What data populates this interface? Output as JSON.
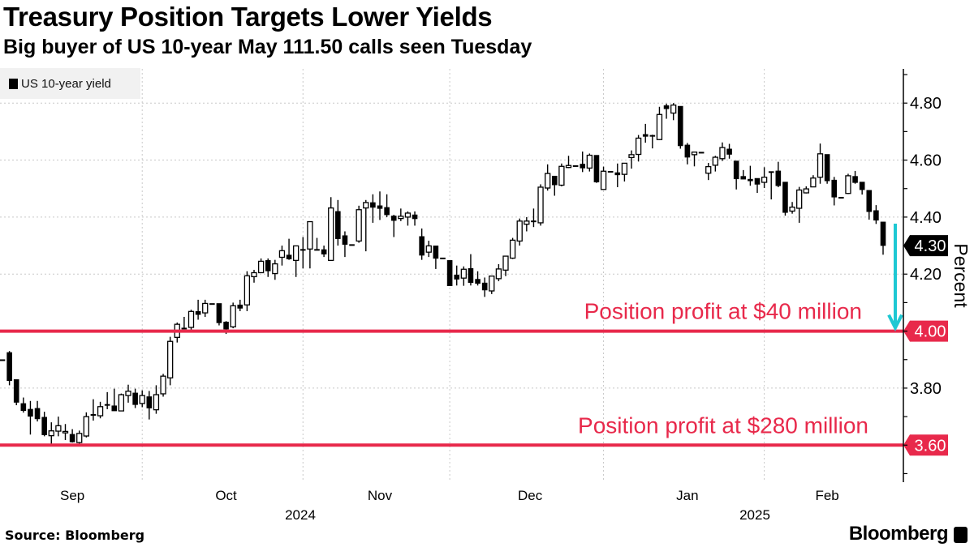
{
  "title": "Treasury Position Targets Lower Yields",
  "subtitle": "Big buyer of US 10-year May 111.50 calls seen Tuesday",
  "source": "Source: Bloomberg",
  "brand": "Bloomberg",
  "colors": {
    "up_fill": "#ffffff",
    "down_fill": "#000000",
    "target_line": "#e8294b",
    "arrow": "#1ec8d3",
    "grid": "#c8c8c8"
  },
  "chart_data": {
    "type": "candlestick",
    "title": "Treasury Position Targets Lower Yields",
    "ylabel": "Percent",
    "ylim": [
      3.47,
      4.92
    ],
    "grid": true,
    "legend": {
      "position": "top-left",
      "entries": [
        "US 10-year yield"
      ]
    },
    "y_ticks": [
      "4.80",
      "4.60",
      "4.40",
      "4.20",
      "4.00",
      "3.80",
      "3.60"
    ],
    "x_months": [
      "Sep",
      "Oct",
      "Nov",
      "Dec",
      "Jan",
      "Feb"
    ],
    "x_years": [
      "2024",
      "2025"
    ],
    "last_value_label": "4.30",
    "reference_lines": [
      {
        "value": 4.0,
        "label": "4.00",
        "annotation": "Position profit at $40 million"
      },
      {
        "value": 3.6,
        "label": "3.60",
        "annotation": "Position profit at $280 million"
      }
    ],
    "series": [
      {
        "name": "US 10-year yield",
        "fields": [
          "date",
          "open",
          "high",
          "low",
          "close"
        ],
        "candles": [
          [
            "2024-09-02",
            3.9,
            3.9,
            3.9,
            3.9
          ],
          [
            "2024-09-03",
            3.925,
            3.93,
            3.81,
            3.826
          ],
          [
            "2024-09-04",
            3.83,
            3.83,
            3.74,
            3.75
          ],
          [
            "2024-09-05",
            3.746,
            3.767,
            3.714,
            3.721
          ],
          [
            "2024-09-06",
            3.726,
            3.755,
            3.637,
            3.701
          ],
          [
            "2024-09-09",
            3.729,
            3.755,
            3.683,
            3.692
          ],
          [
            "2024-09-10",
            3.698,
            3.717,
            3.631,
            3.636
          ],
          [
            "2024-09-11",
            3.633,
            3.68,
            3.6,
            3.65
          ],
          [
            "2024-09-12",
            3.649,
            3.7,
            3.631,
            3.668
          ],
          [
            "2024-09-13",
            3.643,
            3.674,
            3.618,
            3.648
          ],
          [
            "2024-09-16",
            3.638,
            3.656,
            3.609,
            3.611
          ],
          [
            "2024-09-17",
            3.609,
            3.651,
            3.598,
            3.641
          ],
          [
            "2024-09-18",
            3.632,
            3.715,
            3.627,
            3.7
          ],
          [
            "2024-09-19",
            3.708,
            3.761,
            3.686,
            3.704
          ],
          [
            "2024-09-20",
            3.703,
            3.752,
            3.694,
            3.735
          ],
          [
            "2024-09-23",
            3.743,
            3.786,
            3.726,
            3.741
          ],
          [
            "2024-09-24",
            3.738,
            3.798,
            3.72,
            3.72
          ],
          [
            "2024-09-25",
            3.72,
            3.781,
            3.72,
            3.777
          ],
          [
            "2024-09-26",
            3.774,
            3.812,
            3.749,
            3.789
          ],
          [
            "2024-09-27",
            3.783,
            3.798,
            3.73,
            3.742
          ],
          [
            "2024-09-30",
            3.746,
            3.792,
            3.733,
            3.774
          ],
          [
            "2024-10-01",
            3.77,
            3.79,
            3.69,
            3.73
          ],
          [
            "2024-10-02",
            3.724,
            3.81,
            3.71,
            3.777
          ],
          [
            "2024-10-03",
            3.78,
            3.85,
            3.77,
            3.842
          ],
          [
            "2024-10-04",
            3.836,
            3.98,
            3.81,
            3.964
          ],
          [
            "2024-10-07",
            3.978,
            4.03,
            3.96,
            4.024
          ],
          [
            "2024-10-08",
            4.011,
            4.05,
            4.01,
            4.011
          ],
          [
            "2024-10-09",
            4.013,
            4.075,
            4.005,
            4.069
          ],
          [
            "2024-10-10",
            4.069,
            4.11,
            4.04,
            4.058
          ],
          [
            "2024-10-11",
            4.064,
            4.11,
            4.05,
            4.097
          ],
          [
            "2024-10-14",
            4.097,
            4.097,
            4.097,
            4.097
          ],
          [
            "2024-10-15",
            4.097,
            4.097,
            4.02,
            4.029
          ],
          [
            "2024-10-16",
            4.032,
            4.035,
            3.99,
            4.007
          ],
          [
            "2024-10-17",
            4.015,
            4.1,
            4.01,
            4.089
          ],
          [
            "2024-10-18",
            4.092,
            4.11,
            4.07,
            4.08
          ],
          [
            "2024-10-21",
            4.092,
            4.21,
            4.07,
            4.194
          ],
          [
            "2024-10-22",
            4.191,
            4.215,
            4.17,
            4.205
          ],
          [
            "2024-10-23",
            4.205,
            4.255,
            4.205,
            4.245
          ],
          [
            "2024-10-24",
            4.248,
            4.255,
            4.19,
            4.211
          ],
          [
            "2024-10-25",
            4.202,
            4.25,
            4.18,
            4.236
          ],
          [
            "2024-10-28",
            4.259,
            4.3,
            4.23,
            4.282
          ],
          [
            "2024-10-29",
            4.267,
            4.324,
            4.25,
            4.253
          ],
          [
            "2024-10-30",
            4.248,
            4.3,
            4.19,
            4.299
          ],
          [
            "2024-10-31",
            4.287,
            4.33,
            4.22,
            4.287
          ],
          [
            "2024-11-01",
            4.288,
            4.384,
            4.22,
            4.384
          ],
          [
            "2024-11-04",
            4.287,
            4.327,
            4.287,
            4.287
          ],
          [
            "2024-11-05",
            4.286,
            4.3,
            4.26,
            4.27
          ],
          [
            "2024-11-06",
            4.248,
            4.47,
            4.247,
            4.432
          ],
          [
            "2024-11-07",
            4.42,
            4.46,
            4.3,
            4.324
          ],
          [
            "2024-11-08",
            4.335,
            4.35,
            4.26,
            4.304
          ],
          [
            "2024-11-11",
            4.304,
            4.304,
            4.304,
            4.304
          ],
          [
            "2024-11-12",
            4.316,
            4.44,
            4.31,
            4.426
          ],
          [
            "2024-11-13",
            4.432,
            4.46,
            4.28,
            4.451
          ],
          [
            "2024-11-14",
            4.451,
            4.48,
            4.38,
            4.434
          ],
          [
            "2024-11-15",
            4.44,
            4.49,
            4.39,
            4.43
          ],
          [
            "2024-11-18",
            4.434,
            4.48,
            4.4,
            4.408
          ],
          [
            "2024-11-19",
            4.404,
            4.408,
            4.33,
            4.388
          ],
          [
            "2024-11-20",
            4.395,
            4.43,
            4.386,
            4.403
          ],
          [
            "2024-11-21",
            4.4,
            4.42,
            4.37,
            4.414
          ],
          [
            "2024-11-22",
            4.408,
            4.42,
            4.37,
            4.394
          ],
          [
            "2024-11-25",
            4.332,
            4.36,
            4.25,
            4.266
          ],
          [
            "2024-11-26",
            4.277,
            4.317,
            4.26,
            4.299
          ],
          [
            "2024-11-27",
            4.299,
            4.299,
            4.218,
            4.255
          ],
          [
            "2024-11-28",
            4.257,
            4.257,
            4.257,
            4.257
          ],
          [
            "2024-11-29",
            4.248,
            4.248,
            4.159,
            4.159
          ],
          [
            "2024-12-02",
            4.197,
            4.23,
            4.16,
            4.182
          ],
          [
            "2024-12-03",
            4.186,
            4.227,
            4.159,
            4.217
          ],
          [
            "2024-12-04",
            4.22,
            4.27,
            4.16,
            4.17
          ],
          [
            "2024-12-05",
            4.182,
            4.21,
            4.16,
            4.167
          ],
          [
            "2024-12-06",
            4.169,
            4.188,
            4.12,
            4.144
          ],
          [
            "2024-12-09",
            4.141,
            4.193,
            4.13,
            4.193
          ],
          [
            "2024-12-10",
            4.184,
            4.235,
            4.175,
            4.218
          ],
          [
            "2024-12-11",
            4.214,
            4.263,
            4.193,
            4.263
          ],
          [
            "2024-12-12",
            4.256,
            4.327,
            4.253,
            4.319
          ],
          [
            "2024-12-13",
            4.316,
            4.395,
            4.3,
            4.386
          ],
          [
            "2024-12-16",
            4.375,
            4.4,
            4.35,
            4.386
          ],
          [
            "2024-12-17",
            4.387,
            4.43,
            4.365,
            4.387
          ],
          [
            "2024-12-18",
            4.38,
            4.515,
            4.37,
            4.505
          ],
          [
            "2024-12-19",
            4.502,
            4.585,
            4.493,
            4.553
          ],
          [
            "2024-12-20",
            4.544,
            4.544,
            4.475,
            4.513
          ],
          [
            "2024-12-23",
            4.512,
            4.588,
            4.508,
            4.578
          ],
          [
            "2024-12-24",
            4.574,
            4.615,
            4.572,
            4.581
          ],
          [
            "2024-12-25",
            4.581,
            4.581,
            4.581,
            4.581
          ],
          [
            "2024-12-26",
            4.586,
            4.63,
            4.558,
            4.572
          ],
          [
            "2024-12-27",
            4.572,
            4.623,
            4.56,
            4.617
          ],
          [
            "2024-12-30",
            4.617,
            4.617,
            4.52,
            4.523
          ],
          [
            "2024-12-31",
            4.497,
            4.577,
            4.497,
            4.561
          ],
          [
            "2025-01-01",
            4.561,
            4.561,
            4.561,
            4.561
          ],
          [
            "2025-01-02",
            4.556,
            4.588,
            4.505,
            4.548
          ],
          [
            "2025-01-03",
            4.55,
            4.589,
            4.525,
            4.589
          ],
          [
            "2025-01-06",
            4.609,
            4.634,
            4.57,
            4.619
          ],
          [
            "2025-01-07",
            4.62,
            4.688,
            4.595,
            4.677
          ],
          [
            "2025-01-08",
            4.69,
            4.727,
            4.661,
            4.683
          ],
          [
            "2025-01-09",
            4.687,
            4.689,
            4.641,
            4.687
          ],
          [
            "2025-01-10",
            4.672,
            4.787,
            4.67,
            4.76
          ],
          [
            "2025-01-13",
            4.791,
            4.798,
            4.745,
            4.78
          ],
          [
            "2025-01-14",
            4.765,
            4.8,
            4.74,
            4.793
          ],
          [
            "2025-01-15",
            4.789,
            4.789,
            4.64,
            4.65
          ],
          [
            "2025-01-16",
            4.653,
            4.66,
            4.585,
            4.61
          ],
          [
            "2025-01-17",
            4.619,
            4.628,
            4.578,
            4.628
          ],
          [
            "2025-01-20",
            4.628,
            4.628,
            4.628,
            4.628
          ],
          [
            "2025-01-21",
            4.554,
            4.59,
            4.53,
            4.577
          ],
          [
            "2025-01-22",
            4.582,
            4.615,
            4.56,
            4.61
          ],
          [
            "2025-01-23",
            4.605,
            4.662,
            4.597,
            4.644
          ],
          [
            "2025-01-24",
            4.639,
            4.657,
            4.605,
            4.62
          ],
          [
            "2025-01-27",
            4.597,
            4.597,
            4.497,
            4.534
          ],
          [
            "2025-01-28",
            4.543,
            4.565,
            4.533,
            4.533
          ],
          [
            "2025-01-29",
            4.533,
            4.58,
            4.51,
            4.527
          ],
          [
            "2025-01-30",
            4.536,
            4.536,
            4.485,
            4.515
          ],
          [
            "2025-01-31",
            4.522,
            4.575,
            4.502,
            4.54
          ],
          [
            "2025-02-03",
            4.56,
            4.56,
            4.462,
            4.56
          ],
          [
            "2025-02-04",
            4.562,
            4.594,
            4.505,
            4.51
          ],
          [
            "2025-02-05",
            4.523,
            4.523,
            4.405,
            4.416
          ],
          [
            "2025-02-06",
            4.421,
            4.453,
            4.412,
            4.435
          ],
          [
            "2025-02-07",
            4.431,
            4.506,
            4.38,
            4.495
          ],
          [
            "2025-02-10",
            4.485,
            4.508,
            4.483,
            4.499
          ],
          [
            "2025-02-11",
            4.506,
            4.547,
            4.506,
            4.537
          ],
          [
            "2025-02-12",
            4.54,
            4.658,
            4.517,
            4.622
          ],
          [
            "2025-02-13",
            4.62,
            4.62,
            4.517,
            4.527
          ],
          [
            "2025-02-14",
            4.53,
            4.541,
            4.441,
            4.47
          ],
          [
            "2025-02-17",
            4.47,
            4.47,
            4.47,
            4.47
          ],
          [
            "2025-02-18",
            4.483,
            4.552,
            4.481,
            4.545
          ],
          [
            "2025-02-19",
            4.543,
            4.562,
            4.517,
            4.521
          ],
          [
            "2025-02-20",
            4.523,
            4.523,
            4.479,
            4.496
          ],
          [
            "2025-02-21",
            4.494,
            4.494,
            4.391,
            4.419
          ],
          [
            "2025-02-24",
            4.423,
            4.442,
            4.376,
            4.389
          ],
          [
            "2025-02-25",
            4.383,
            4.383,
            4.268,
            4.3
          ]
        ]
      }
    ]
  }
}
